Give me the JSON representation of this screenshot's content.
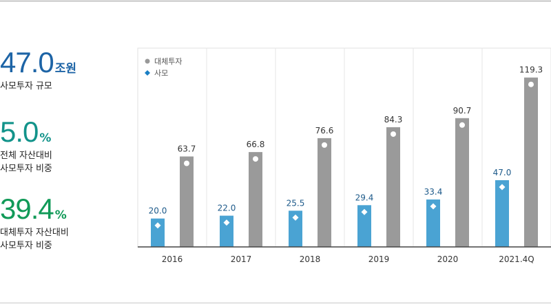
{
  "stats": [
    {
      "value": "47.0",
      "unit": "조원",
      "color": "#1d64a6",
      "description": "사모투자 규모"
    },
    {
      "value": "5.0",
      "unit": "%",
      "color": "#12938a",
      "description": "전체 자산대비\n사모투자 비중"
    },
    {
      "value": "39.4",
      "unit": "%",
      "color": "#119a58",
      "description": "대체투자 자산대비\n사모투자 비중"
    }
  ],
  "chart_data": {
    "type": "bar",
    "categories": [
      "2016",
      "2017",
      "2018",
      "2019",
      "2020",
      "2021.4Q"
    ],
    "series": [
      {
        "name": "사모",
        "values": [
          20.0,
          22.0,
          25.5,
          29.4,
          33.4,
          47.0
        ],
        "color": "#4aa3d3",
        "label_color": "#1d5a8a",
        "marker": "diamond"
      },
      {
        "name": "대체투자",
        "values": [
          63.7,
          66.8,
          76.6,
          84.3,
          90.7,
          119.3
        ],
        "color": "#9a9a9a",
        "label_color": "#333333",
        "marker": "circle"
      }
    ],
    "legend": [
      {
        "label": "대체투자",
        "color": "#999999",
        "marker": "circle"
      },
      {
        "label": "사모",
        "color": "#1a7fc4",
        "marker": "diamond"
      }
    ],
    "legend_position": "top-left",
    "ylim": [
      0,
      140
    ],
    "grid": "vertical-separators",
    "xlabel": "",
    "ylabel": ""
  }
}
